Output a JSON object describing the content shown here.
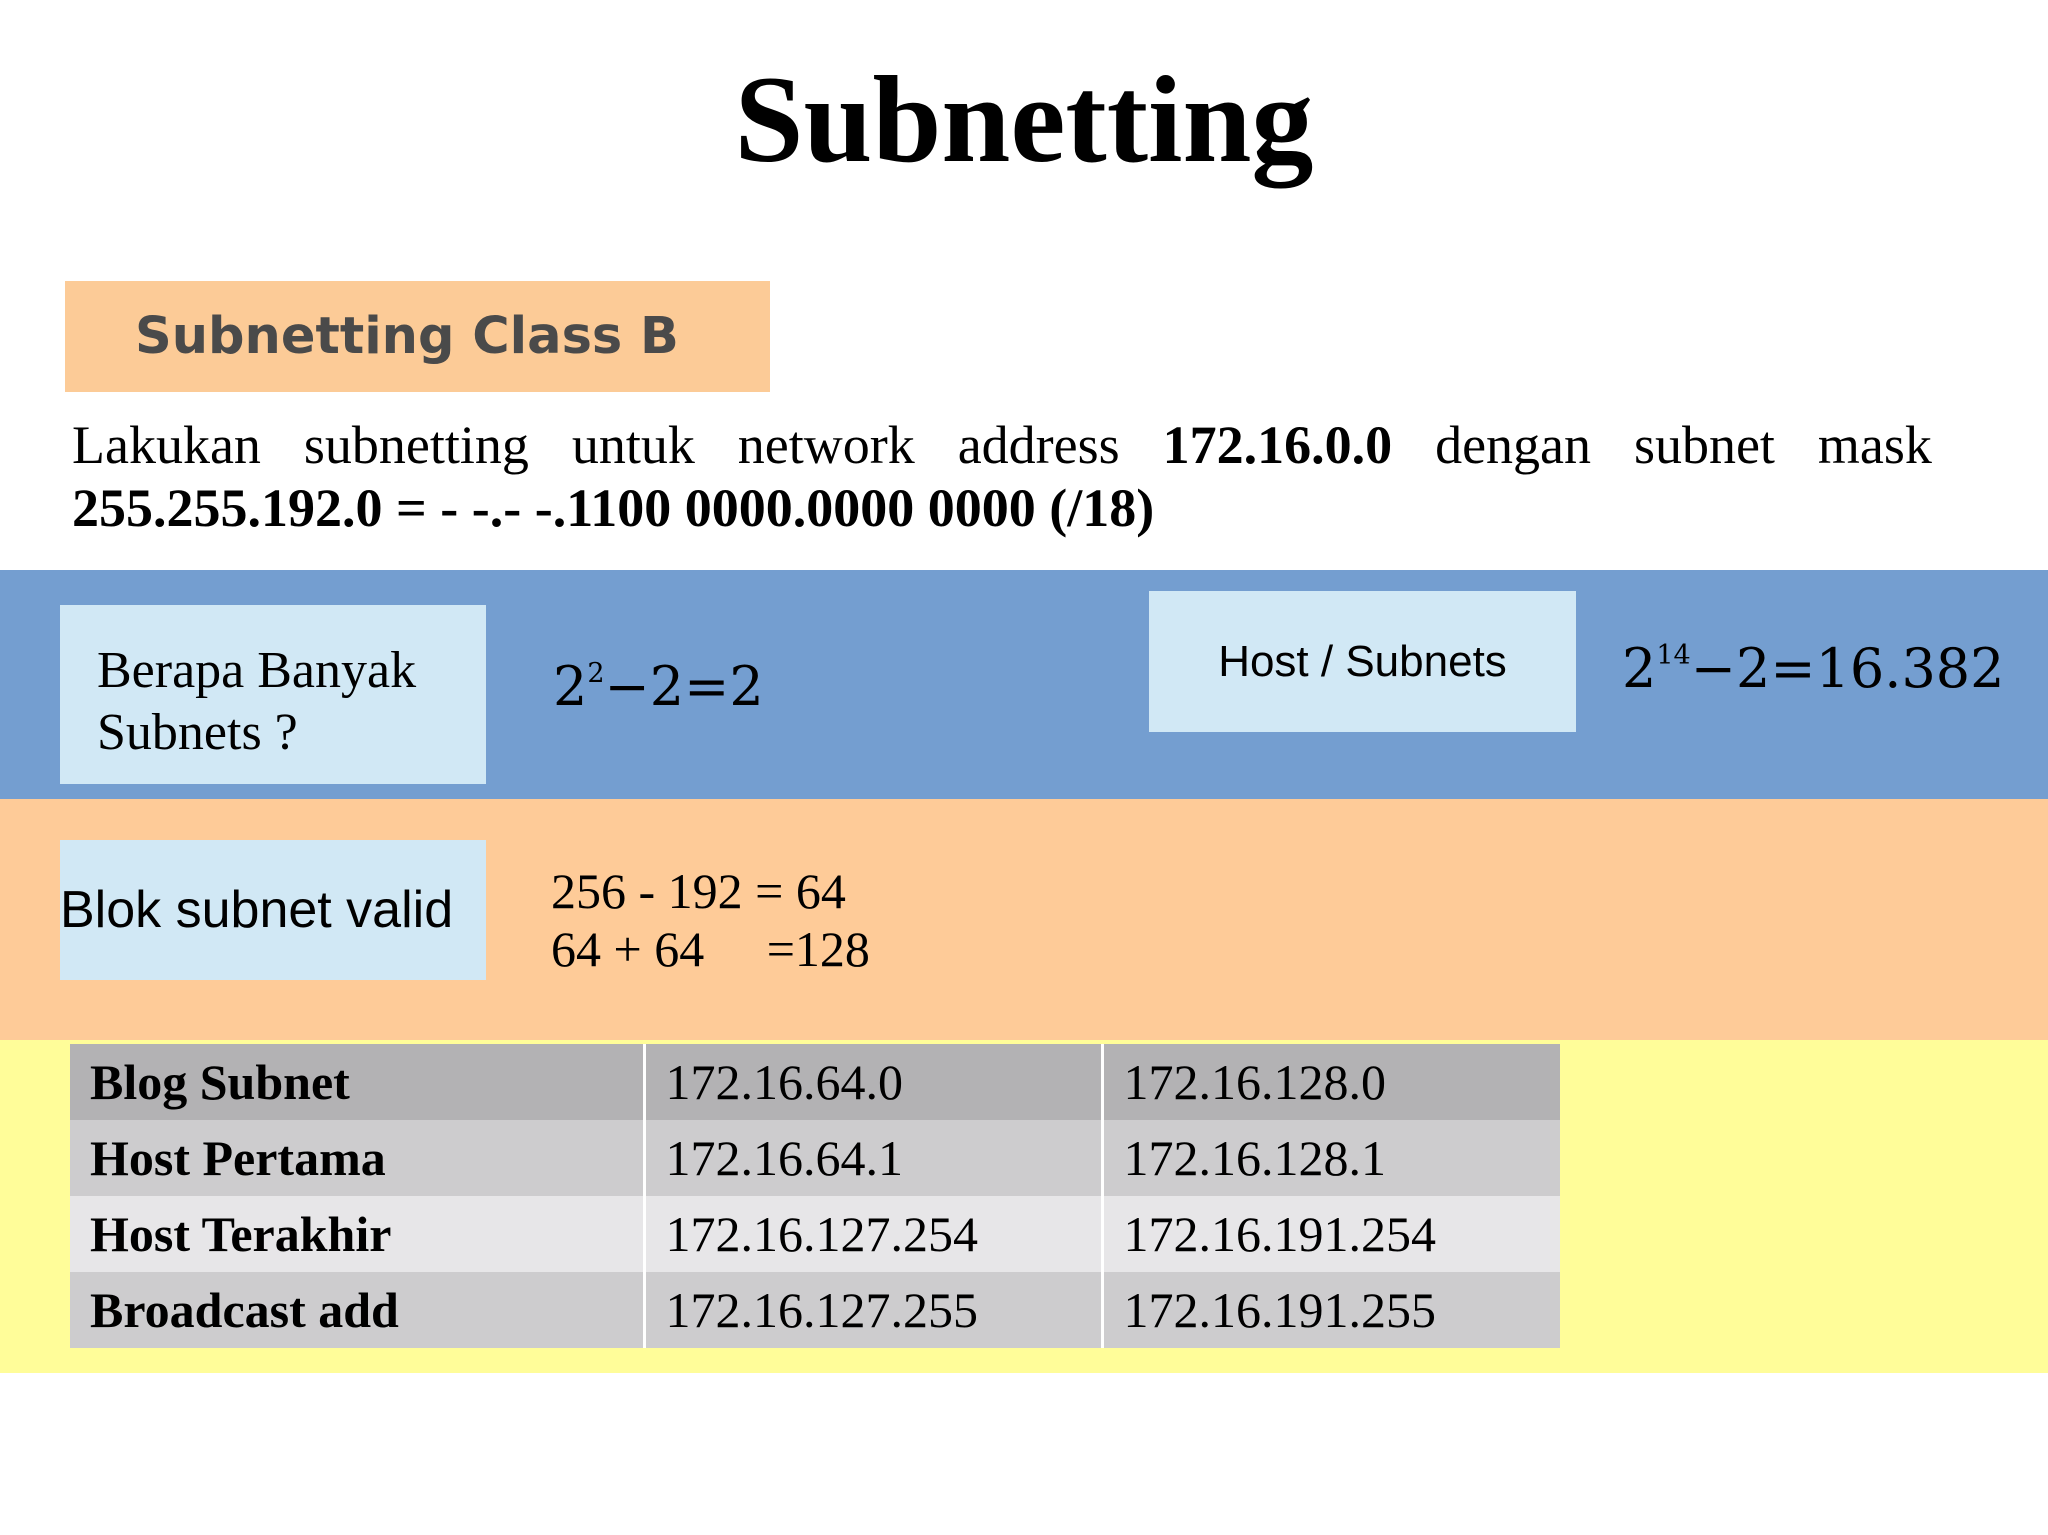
{
  "title": "Subnetting",
  "section_label": "Subnetting Class B",
  "intro": {
    "line1_words": [
      "Lakukan",
      "subnetting",
      "untuk",
      "network",
      "address"
    ],
    "network_address": "172.16.0.0",
    "line1_tail_words": [
      "dengan",
      "subnet",
      "mask"
    ],
    "line2": "255.255.192.0 = - -.- -.1100 0000.0000 0000 (/18)"
  },
  "subnets_question": {
    "line1": "Berapa Banyak",
    "line2": "Subnets ?"
  },
  "subnets_formula": {
    "base": "2",
    "exponent": "2",
    "rest": "−2=2"
  },
  "hosts_label": "Host / Subnets",
  "hosts_formula": {
    "base": "2",
    "exponent": "14",
    "rest": "−2=16.382"
  },
  "blok_label": "Blok subnet valid",
  "blok_calc": {
    "line1": "256 - 192 = 64",
    "line2": "64 + 64     =128"
  },
  "table": {
    "rows": [
      [
        "Blog Subnet",
        "172.16.64.0",
        "172.16.128.0"
      ],
      [
        "Host Pertama",
        "172.16.64.1",
        "172.16.128.1"
      ],
      [
        "Host Terakhir",
        "172.16.127.254",
        "172.16.191.254"
      ],
      [
        "Broadcast add",
        "172.16.127.255",
        "172.16.191.255"
      ]
    ]
  }
}
